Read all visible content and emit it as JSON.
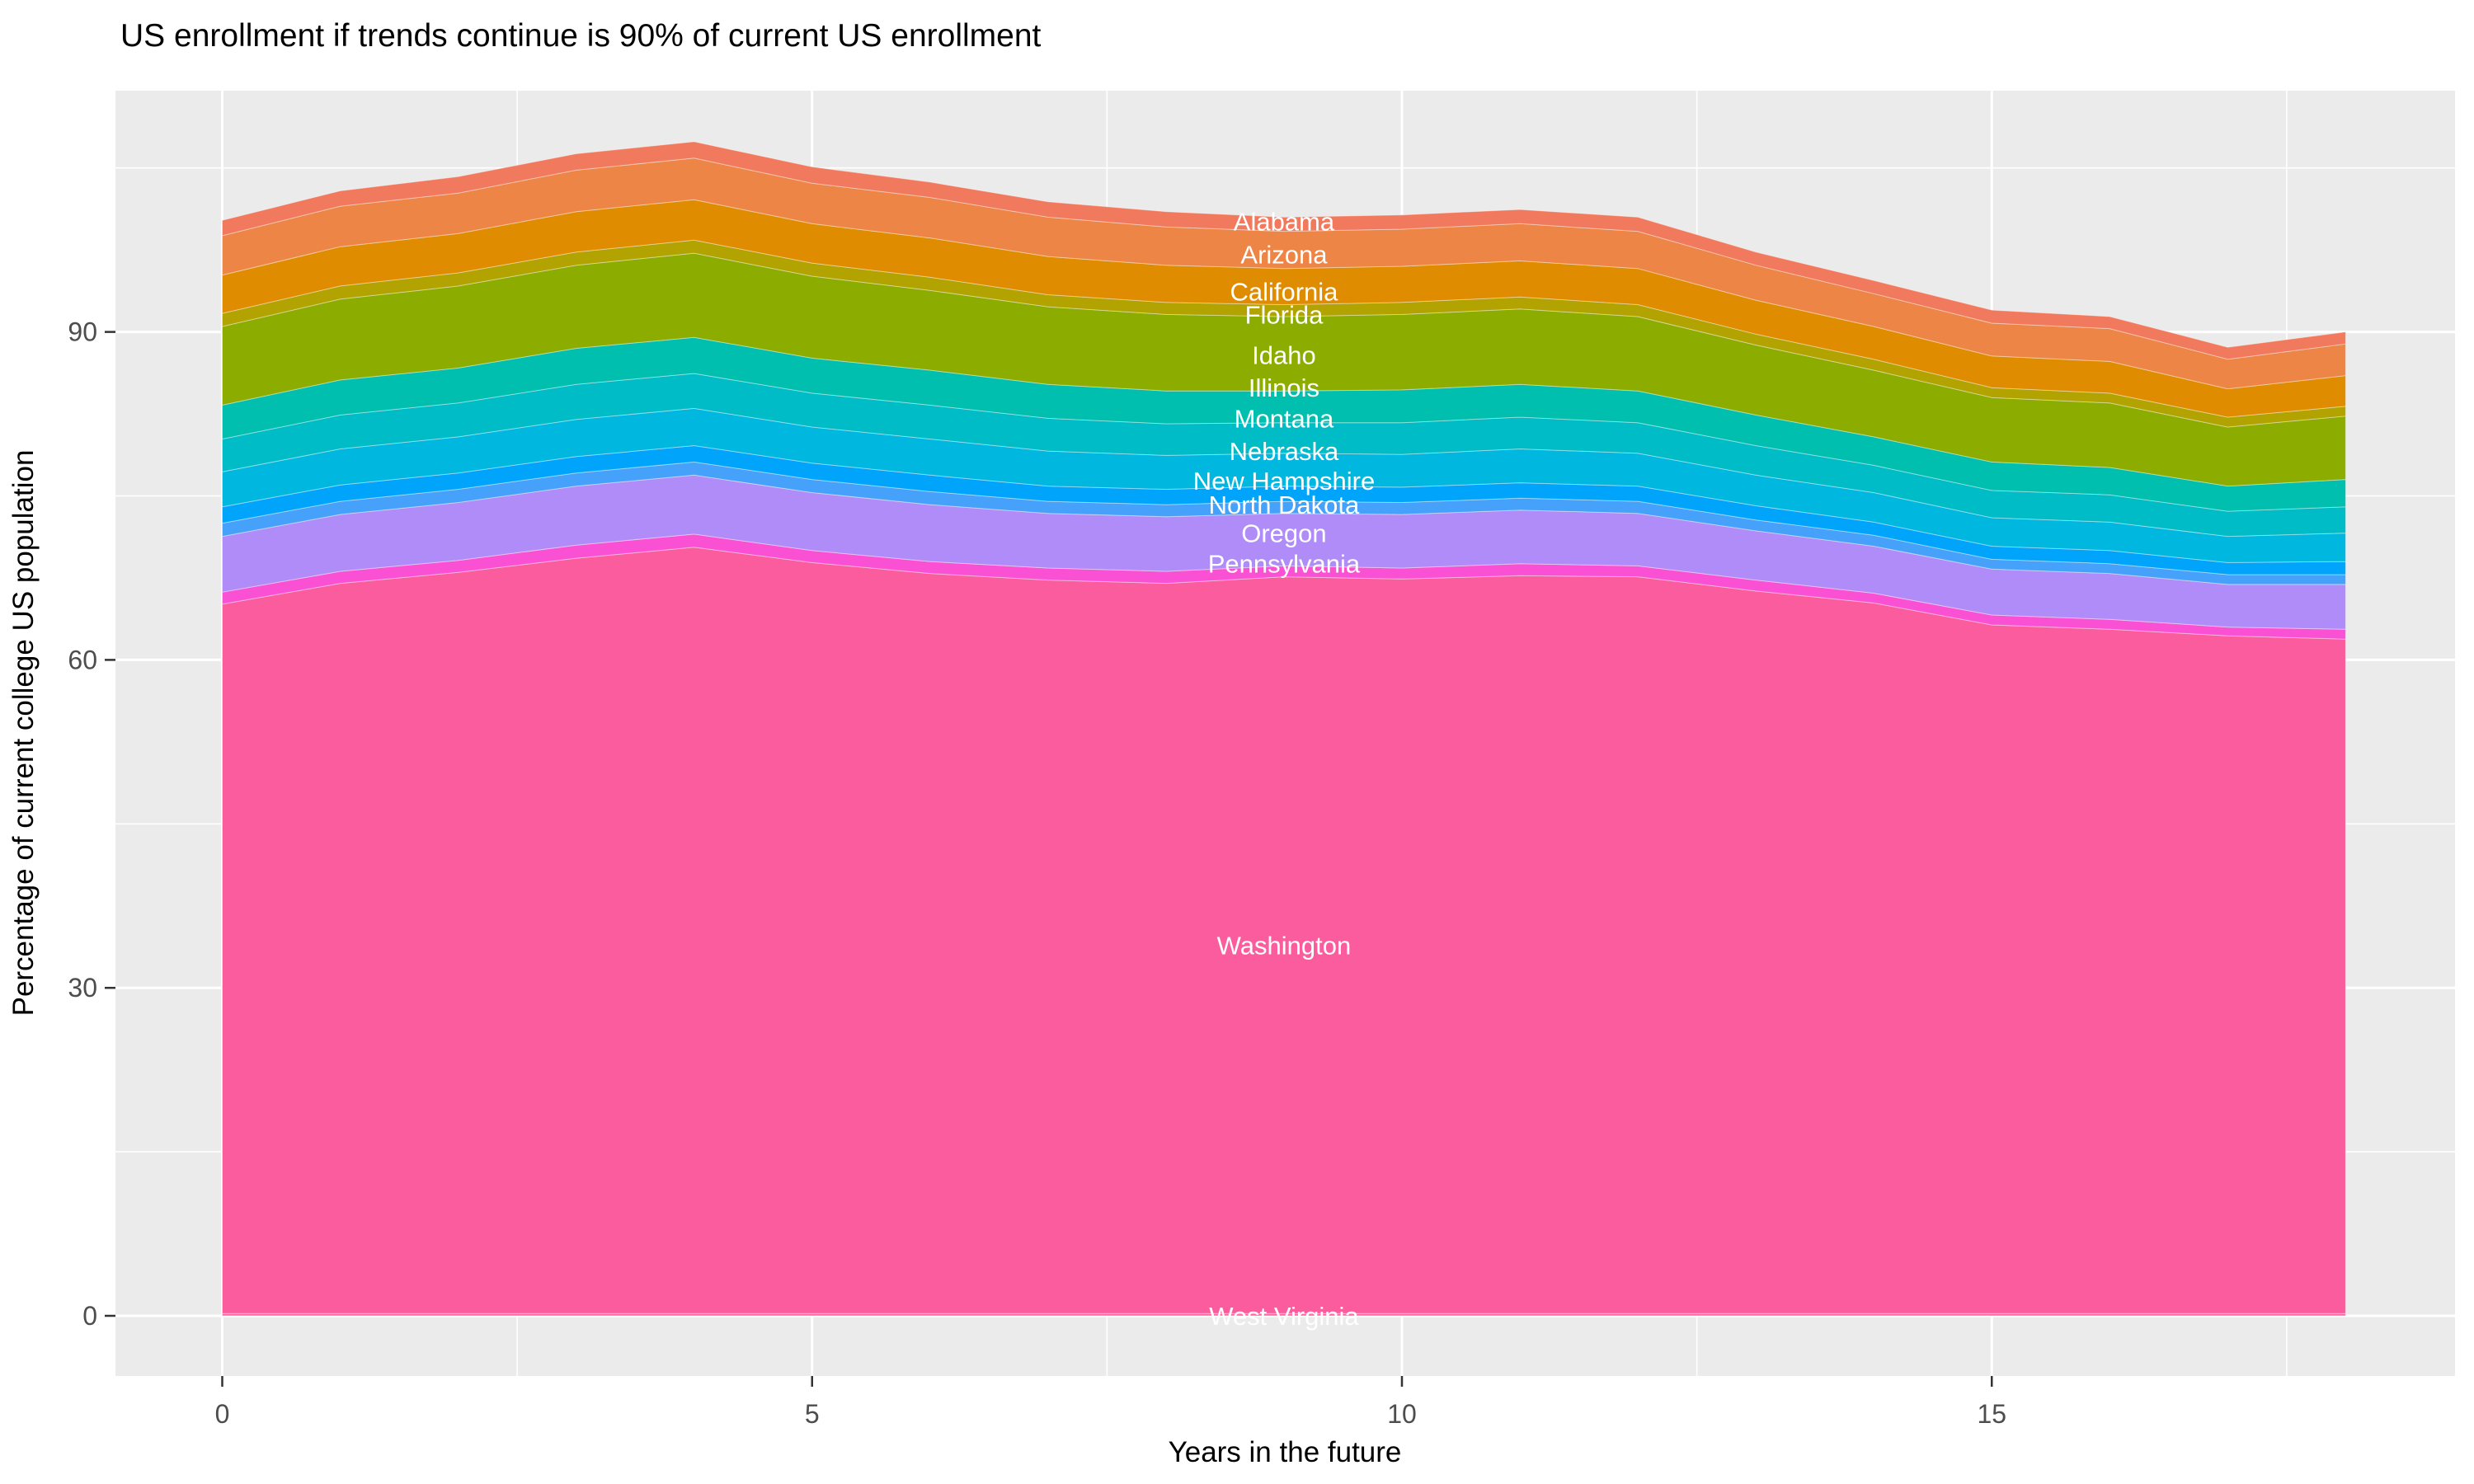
{
  "title": "US enrollment if trends continue is 90% of current US enrollment",
  "x_axis": {
    "title": "Years in the future",
    "ticks": [
      0,
      5,
      10,
      15
    ],
    "minor_ticks": [
      2.5,
      7.5,
      12.5,
      17.5
    ],
    "range": [
      -0.9,
      18.9
    ]
  },
  "y_axis": {
    "title": "Percentage of current college US population",
    "ticks": [
      0,
      30,
      60,
      90
    ],
    "minor_ticks": [
      15,
      45,
      75,
      105
    ],
    "range": [
      -5.6,
      112.1
    ]
  },
  "chart_data": {
    "type": "area",
    "stacked": true,
    "grid": true,
    "legend": "none",
    "panel_bg": "#EBEBEB",
    "grid_color": "#FFFFFF",
    "label_color": "#FFFFFF",
    "label_x": 9,
    "x": [
      0,
      1,
      2,
      3,
      4,
      5,
      6,
      7,
      8,
      9,
      10,
      11,
      12,
      13,
      14,
      15,
      16,
      17,
      18
    ],
    "totals_approx": [
      100.2,
      102.8,
      104.2,
      106.3,
      107.5,
      105.3,
      103.5,
      101.9,
      101.2,
      100.7,
      100.7,
      101.1,
      100.6,
      97.4,
      94.8,
      92.0,
      91.5,
      88.6,
      90.0
    ],
    "series": [
      {
        "name": "West Virginia",
        "color": "#FF6BA0",
        "label_y": 0.0,
        "values": [
          0.2,
          0.2,
          0.2,
          0.2,
          0.2,
          0.2,
          0.2,
          0.2,
          0.2,
          0.2,
          0.2,
          0.2,
          0.2,
          0.2,
          0.2,
          0.2,
          0.2,
          0.2,
          0.2
        ]
      },
      {
        "name": "Washington",
        "color": "#FB5C9E",
        "label_y": 33.9,
        "values": [
          64.9,
          66.8,
          67.8,
          69.1,
          70.1,
          68.7,
          67.7,
          67.1,
          66.8,
          67.4,
          67.2,
          67.5,
          67.4,
          66.1,
          65.0,
          63.0,
          62.6,
          62.0,
          61.7
        ]
      },
      {
        "name": "Pennsylvania",
        "color": "#FA51D4",
        "label_y": 68.8,
        "values": [
          1.1,
          1.1,
          1.1,
          1.2,
          1.2,
          1.1,
          1.1,
          1.1,
          1.1,
          1.0,
          1.0,
          1.1,
          1.0,
          1.0,
          0.9,
          0.9,
          0.9,
          0.8,
          0.9
        ]
      },
      {
        "name": "Oregon",
        "color": "#B08CF9",
        "label_y": 71.6,
        "values": [
          5.1,
          5.2,
          5.3,
          5.4,
          5.4,
          5.3,
          5.2,
          5.0,
          5.0,
          4.8,
          4.9,
          4.9,
          4.8,
          4.5,
          4.3,
          4.2,
          4.2,
          3.9,
          4.1
        ]
      },
      {
        "name": "North Dakota",
        "color": "#45A1F9",
        "label_y": 74.2,
        "values": [
          1.2,
          1.2,
          1.2,
          1.2,
          1.2,
          1.2,
          1.2,
          1.1,
          1.1,
          1.1,
          1.1,
          1.1,
          1.1,
          1.0,
          1.0,
          0.9,
          0.9,
          0.9,
          0.9
        ]
      },
      {
        "name": "New Hampshire",
        "color": "#00A5FB",
        "label_y": 76.4,
        "values": [
          1.5,
          1.5,
          1.5,
          1.5,
          1.5,
          1.5,
          1.5,
          1.4,
          1.4,
          1.4,
          1.4,
          1.4,
          1.4,
          1.3,
          1.2,
          1.2,
          1.2,
          1.1,
          1.2
        ]
      },
      {
        "name": "Nebraska",
        "color": "#00B7DF",
        "label_y": 79.1,
        "values": [
          3.2,
          3.3,
          3.3,
          3.4,
          3.4,
          3.3,
          3.3,
          3.2,
          3.1,
          3.0,
          3.0,
          3.1,
          3.0,
          2.8,
          2.7,
          2.6,
          2.6,
          2.4,
          2.6
        ]
      },
      {
        "name": "Montana",
        "color": "#00BCC6",
        "label_y": 82.1,
        "values": [
          3.0,
          3.1,
          3.1,
          3.2,
          3.2,
          3.1,
          3.1,
          3.0,
          2.9,
          2.8,
          2.9,
          2.9,
          2.8,
          2.7,
          2.5,
          2.5,
          2.5,
          2.3,
          2.4
        ]
      },
      {
        "name": "Illinois",
        "color": "#00BFAE",
        "label_y": 84.9,
        "values": [
          3.1,
          3.2,
          3.2,
          3.3,
          3.3,
          3.2,
          3.2,
          3.1,
          3.0,
          2.9,
          3.0,
          3.0,
          2.9,
          2.8,
          2.6,
          2.6,
          2.5,
          2.3,
          2.5
        ]
      },
      {
        "name": "Idaho",
        "color": "#8CAD00",
        "label_y": 87.9,
        "values": [
          7.2,
          7.4,
          7.5,
          7.6,
          7.7,
          7.5,
          7.3,
          7.1,
          7.0,
          6.8,
          6.9,
          6.9,
          6.8,
          6.4,
          6.1,
          5.9,
          5.9,
          5.4,
          5.8
        ]
      },
      {
        "name": "Florida",
        "color": "#B2A300",
        "label_y": 91.6,
        "values": [
          1.2,
          1.2,
          1.2,
          1.2,
          1.2,
          1.2,
          1.2,
          1.1,
          1.1,
          1.1,
          1.1,
          1.1,
          1.1,
          1.0,
          1.0,
          0.9,
          0.9,
          0.9,
          0.9
        ]
      },
      {
        "name": "California",
        "color": "#E08C00",
        "label_y": 93.7,
        "values": [
          3.5,
          3.6,
          3.6,
          3.7,
          3.7,
          3.6,
          3.6,
          3.5,
          3.4,
          3.3,
          3.3,
          3.3,
          3.3,
          3.1,
          3.0,
          2.9,
          2.9,
          2.6,
          2.8
        ]
      },
      {
        "name": "Arizona",
        "color": "#ED8546",
        "label_y": 97.1,
        "values": [
          3.6,
          3.7,
          3.7,
          3.8,
          3.8,
          3.7,
          3.7,
          3.6,
          3.5,
          3.4,
          3.4,
          3.4,
          3.4,
          3.2,
          3.0,
          3.0,
          3.0,
          2.7,
          2.9
        ]
      },
      {
        "name": "Alabama",
        "color": "#F1795D",
        "label_y": 100.1,
        "values": [
          1.4,
          1.4,
          1.5,
          1.5,
          1.5,
          1.5,
          1.4,
          1.4,
          1.4,
          1.3,
          1.3,
          1.3,
          1.3,
          1.2,
          1.2,
          1.2,
          1.1,
          1.1,
          1.1
        ]
      }
    ]
  }
}
